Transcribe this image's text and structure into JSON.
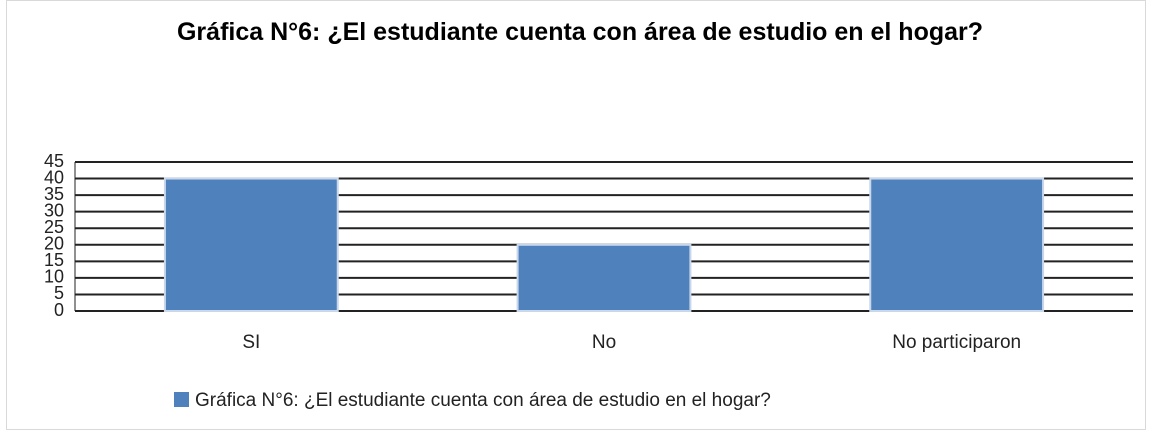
{
  "chart_data": {
    "type": "bar",
    "title": "Gráfica N°6: ¿El estudiante cuenta con área de estudio en el hogar?",
    "categories": [
      "SI",
      "No",
      "No participaron"
    ],
    "series": [
      {
        "name": "Gráfica N°6: ¿El estudiante cuenta con área de estudio en el hogar?",
        "color": "#4f81bd",
        "values": [
          40,
          20,
          40
        ]
      }
    ],
    "ylim": [
      0,
      45
    ],
    "yticks": [
      0,
      5,
      10,
      15,
      20,
      25,
      30,
      35,
      40,
      45
    ],
    "grid": true,
    "legend": "bottom"
  }
}
